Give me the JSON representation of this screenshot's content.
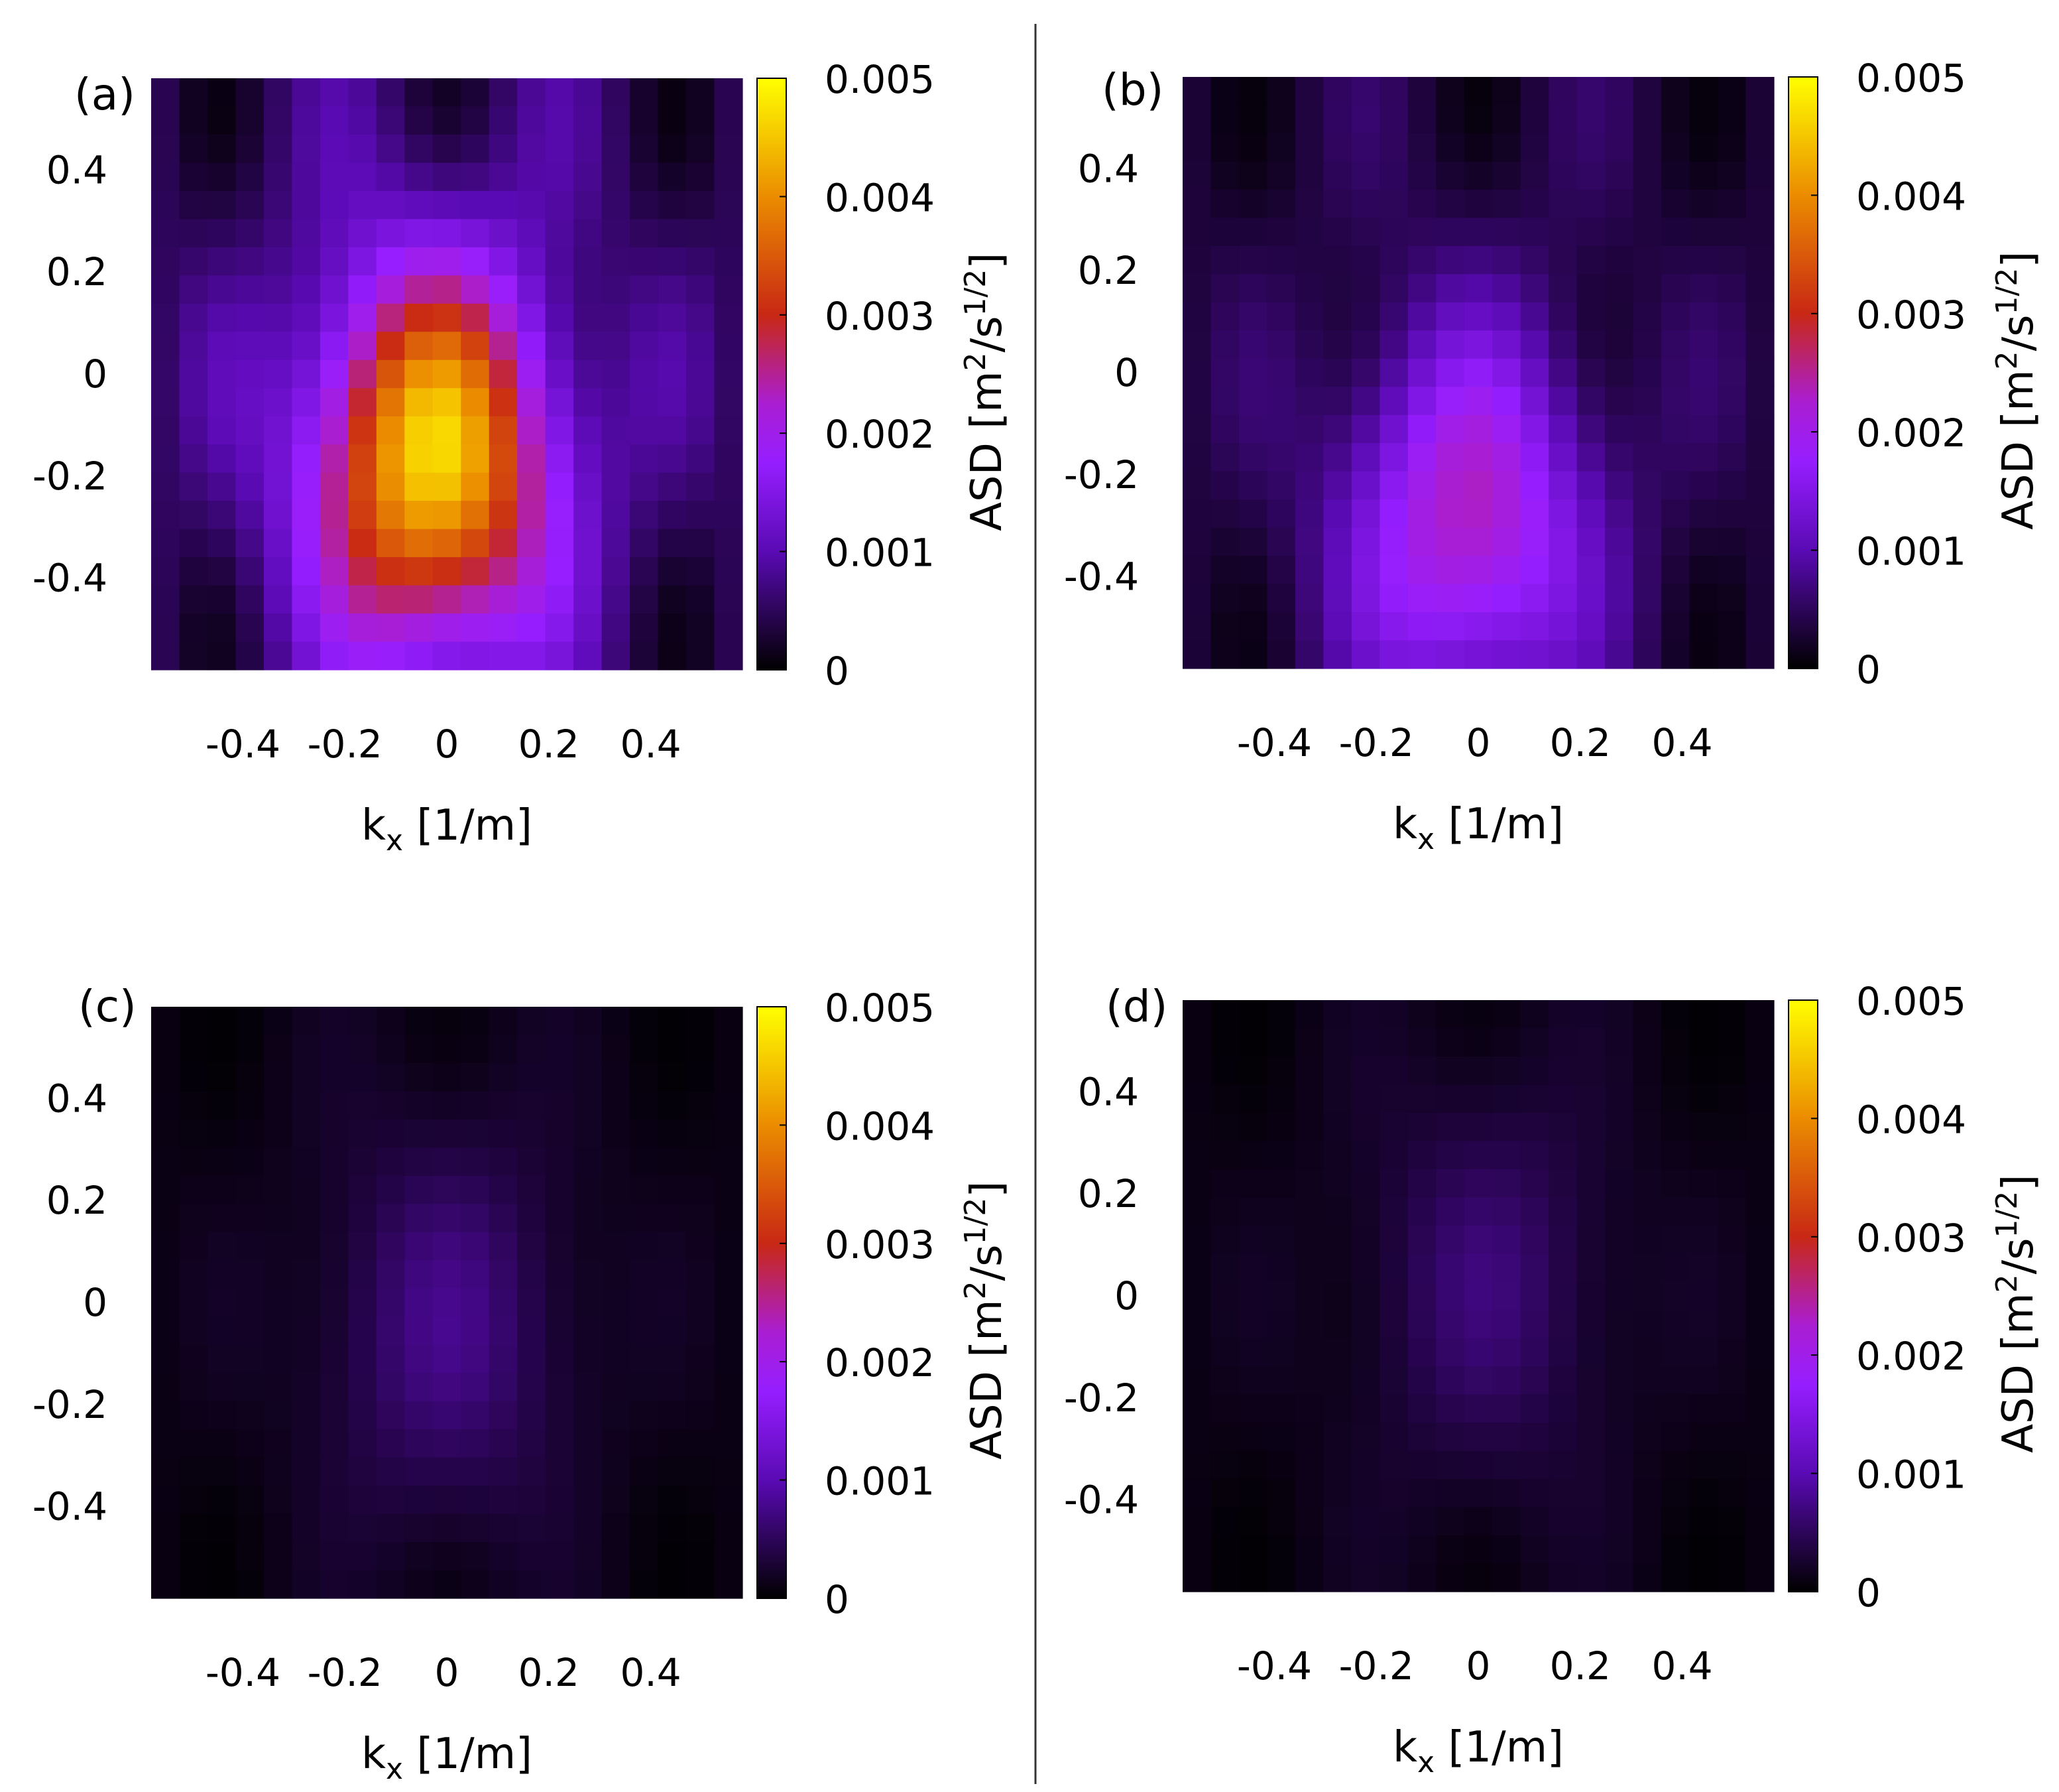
{
  "chart_data": [
    {
      "type": "heatmap",
      "panel_label": "(a)",
      "xlabel": "k_x [1/m]",
      "ylabel": "",
      "x_ticks": [
        "-0.4",
        "-0.2",
        "0",
        "0.2",
        "0.4"
      ],
      "y_ticks": [
        "0.4",
        "0.2",
        "0",
        "-0.2",
        "-0.4"
      ],
      "xlim": [
        -0.58,
        0.58
      ],
      "ylim": [
        -0.58,
        0.58
      ],
      "colorbar": {
        "label": "ASD [m²/s^(1/2)]",
        "label_main": "ASD [m",
        "label_sup1": "2",
        "label_mid": "/s",
        "label_sup2": "1/2",
        "label_end": "]",
        "range": [
          0,
          0.005
        ],
        "ticks": [
          "0",
          "0.001",
          "0.002",
          "0.003",
          "0.004",
          "0.005"
        ]
      },
      "peak": {
        "kx": -0.03,
        "ky": -0.17,
        "value": 0.0049
      },
      "background": 0.0009
    },
    {
      "type": "heatmap",
      "panel_label": "(b)",
      "xlabel": "k_x [1/m]",
      "ylabel": "",
      "x_ticks": [
        "-0.4",
        "-0.2",
        "0",
        "0.2",
        "0.4"
      ],
      "y_ticks": [
        "0.4",
        "0.2",
        "0",
        "-0.2",
        "-0.4"
      ],
      "xlim": [
        -0.58,
        0.58
      ],
      "ylim": [
        -0.58,
        0.58
      ],
      "colorbar": {
        "label": "ASD [m²/s^(1/2)]",
        "label_main": "ASD [m",
        "label_sup1": "2",
        "label_mid": "/s",
        "label_sup2": "1/2",
        "label_end": "]",
        "range": [
          0,
          0.005
        ],
        "ticks": [
          "0",
          "0.001",
          "0.002",
          "0.003",
          "0.004",
          "0.005"
        ]
      },
      "peak": {
        "kx": -0.02,
        "ky": -0.3,
        "value": 0.0026
      },
      "background": 0.0006
    },
    {
      "type": "heatmap",
      "panel_label": "(c)",
      "xlabel": "k_x [1/m]",
      "ylabel": "",
      "x_ticks": [
        "-0.4",
        "-0.2",
        "0",
        "0.2",
        "0.4"
      ],
      "y_ticks": [
        "0.4",
        "0.2",
        "0",
        "-0.2",
        "-0.4"
      ],
      "xlim": [
        -0.58,
        0.58
      ],
      "ylim": [
        -0.58,
        0.58
      ],
      "colorbar": {
        "label": "ASD [m²/s^(1/2)]",
        "label_main": "ASD [m",
        "label_sup1": "2",
        "label_mid": "/s",
        "label_sup2": "1/2",
        "label_end": "]",
        "range": [
          0,
          0.005
        ],
        "ticks": [
          "0",
          "0.001",
          "0.002",
          "0.003",
          "0.004",
          "0.005"
        ]
      },
      "peak": {
        "kx": 0.0,
        "ky": -0.05,
        "value": 0.0008
      },
      "background": 0.0002
    },
    {
      "type": "heatmap",
      "panel_label": "(d)",
      "xlabel": "k_x [1/m]",
      "ylabel": "",
      "x_ticks": [
        "-0.4",
        "-0.2",
        "0",
        "0.2",
        "0.4"
      ],
      "y_ticks": [
        "0.4",
        "0.2",
        "0",
        "-0.2",
        "-0.4"
      ],
      "xlim": [
        -0.58,
        0.58
      ],
      "ylim": [
        -0.58,
        0.58
      ],
      "colorbar": {
        "label": "ASD [m²/s^(1/2)]",
        "label_main": "ASD [m",
        "label_sup1": "2",
        "label_mid": "/s",
        "label_sup2": "1/2",
        "label_end": "]",
        "range": [
          0,
          0.005
        ],
        "ticks": [
          "0",
          "0.001",
          "0.002",
          "0.003",
          "0.004",
          "0.005"
        ]
      },
      "peak": {
        "kx": 0.02,
        "ky": 0.02,
        "value": 0.0007
      },
      "background": 0.0002
    }
  ]
}
